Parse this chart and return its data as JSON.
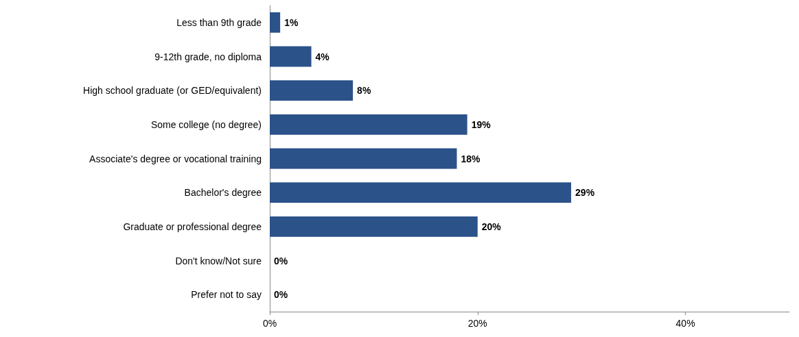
{
  "chart_data": {
    "type": "bar",
    "orientation": "horizontal",
    "categories": [
      "Less than 9th grade",
      "9-12th grade, no diploma",
      "High school graduate (or GED/equivalent)",
      "Some college (no degree)",
      "Associate's degree or vocational training",
      "Bachelor's degree",
      "Graduate or professional degree",
      "Don't know/Not sure",
      "Prefer not to say"
    ],
    "values": [
      1,
      4,
      8,
      19,
      18,
      29,
      20,
      0,
      0
    ],
    "value_labels": [
      "1%",
      "4%",
      "8%",
      "19%",
      "18%",
      "29%",
      "20%",
      "0%",
      "0%"
    ],
    "color": "#2b5289",
    "xlim": [
      0,
      50
    ],
    "xticks": [
      {
        "value": 0,
        "label": "0%"
      },
      {
        "value": 20,
        "label": "20%"
      },
      {
        "value": 40,
        "label": "40%"
      }
    ],
    "grid": false
  }
}
